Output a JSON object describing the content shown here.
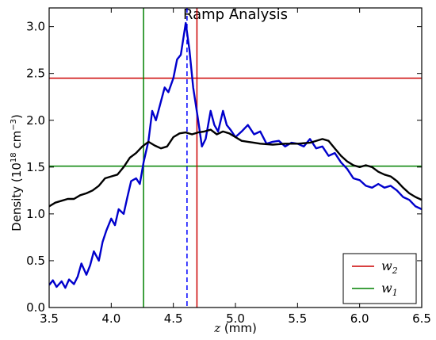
{
  "chart_data": {
    "type": "line",
    "title": "Ramp Analysis",
    "xlabel_var": "z",
    "xlabel_unit": " (mm)",
    "ylabel_main": "Density (10",
    "ylabel_exp1": "18",
    "ylabel_mid": " cm",
    "ylabel_exp2": "−3",
    "ylabel_end": ")",
    "xlim": [
      3.5,
      6.5
    ],
    "ylim": [
      0.0,
      3.2
    ],
    "xticks": [
      "3.5",
      "4.0",
      "4.5",
      "5.0",
      "5.5",
      "6.0",
      "6.5"
    ],
    "yticks": [
      "0.0",
      "0.5",
      "1.0",
      "1.5",
      "2.0",
      "2.5",
      "3.0"
    ],
    "grid": false,
    "legend_position": "lower-right",
    "series": [
      {
        "color": "#0000cc",
        "x": [
          3.5,
          3.53,
          3.56,
          3.6,
          3.63,
          3.66,
          3.7,
          3.73,
          3.76,
          3.8,
          3.83,
          3.86,
          3.9,
          3.93,
          3.96,
          4.0,
          4.03,
          4.06,
          4.1,
          4.13,
          4.16,
          4.2,
          4.23,
          4.26,
          4.3,
          4.33,
          4.36,
          4.4,
          4.43,
          4.46,
          4.5,
          4.53,
          4.56,
          4.6,
          4.63,
          4.66,
          4.7,
          4.73,
          4.76,
          4.8,
          4.83,
          4.86,
          4.9,
          4.93,
          4.96,
          5.0,
          5.05,
          5.1,
          5.15,
          5.2,
          5.25,
          5.3,
          5.35,
          5.4,
          5.45,
          5.5,
          5.55,
          5.6,
          5.65,
          5.7,
          5.75,
          5.8,
          5.85,
          5.9,
          5.95,
          6.0,
          6.05,
          6.1,
          6.15,
          6.2,
          6.25,
          6.3,
          6.35,
          6.4,
          6.45,
          6.5
        ],
        "values": [
          0.24,
          0.29,
          0.22,
          0.28,
          0.21,
          0.3,
          0.25,
          0.33,
          0.47,
          0.35,
          0.45,
          0.6,
          0.5,
          0.7,
          0.82,
          0.95,
          0.88,
          1.05,
          1.0,
          1.18,
          1.35,
          1.38,
          1.32,
          1.55,
          1.78,
          2.1,
          2.0,
          2.2,
          2.35,
          2.3,
          2.45,
          2.65,
          2.7,
          3.04,
          2.75,
          2.35,
          2.0,
          1.72,
          1.8,
          2.1,
          1.95,
          1.88,
          2.1,
          1.95,
          1.9,
          1.82,
          1.88,
          1.95,
          1.85,
          1.88,
          1.75,
          1.77,
          1.78,
          1.72,
          1.76,
          1.75,
          1.72,
          1.8,
          1.7,
          1.72,
          1.62,
          1.65,
          1.55,
          1.48,
          1.38,
          1.36,
          1.3,
          1.28,
          1.32,
          1.28,
          1.3,
          1.25,
          1.18,
          1.15,
          1.08,
          1.05
        ]
      },
      {
        "color": "#000000",
        "x": [
          3.5,
          3.55,
          3.6,
          3.65,
          3.7,
          3.75,
          3.8,
          3.85,
          3.9,
          3.95,
          4.0,
          4.05,
          4.1,
          4.15,
          4.2,
          4.25,
          4.3,
          4.35,
          4.4,
          4.45,
          4.5,
          4.55,
          4.6,
          4.65,
          4.7,
          4.75,
          4.8,
          4.85,
          4.9,
          4.95,
          5.0,
          5.05,
          5.1,
          5.15,
          5.2,
          5.3,
          5.4,
          5.5,
          5.6,
          5.7,
          5.75,
          5.8,
          5.85,
          5.9,
          5.95,
          6.0,
          6.05,
          6.1,
          6.15,
          6.2,
          6.25,
          6.3,
          6.35,
          6.4,
          6.45,
          6.5
        ],
        "values": [
          1.08,
          1.12,
          1.14,
          1.16,
          1.16,
          1.2,
          1.22,
          1.25,
          1.3,
          1.38,
          1.4,
          1.42,
          1.5,
          1.6,
          1.65,
          1.72,
          1.77,
          1.73,
          1.7,
          1.72,
          1.82,
          1.86,
          1.87,
          1.85,
          1.87,
          1.88,
          1.9,
          1.85,
          1.88,
          1.86,
          1.82,
          1.78,
          1.77,
          1.76,
          1.75,
          1.74,
          1.75,
          1.75,
          1.76,
          1.8,
          1.78,
          1.7,
          1.62,
          1.56,
          1.52,
          1.5,
          1.52,
          1.5,
          1.45,
          1.42,
          1.4,
          1.35,
          1.28,
          1.22,
          1.18,
          1.15
        ]
      }
    ],
    "vlines": [
      {
        "x": 4.26,
        "color": "#008000",
        "style": "solid"
      },
      {
        "x": 4.61,
        "color": "#0000ff",
        "style": "dashed"
      },
      {
        "x": 4.69,
        "color": "#cc0000",
        "style": "solid"
      }
    ],
    "hlines": [
      {
        "y": 2.45,
        "color": "#cc0000"
      },
      {
        "y": 1.51,
        "color": "#008000"
      }
    ],
    "legend": [
      {
        "label_base": "w",
        "label_sub": "2",
        "color": "#cc0000"
      },
      {
        "label_base": "w",
        "label_sub": "1",
        "color": "#008000"
      }
    ]
  }
}
